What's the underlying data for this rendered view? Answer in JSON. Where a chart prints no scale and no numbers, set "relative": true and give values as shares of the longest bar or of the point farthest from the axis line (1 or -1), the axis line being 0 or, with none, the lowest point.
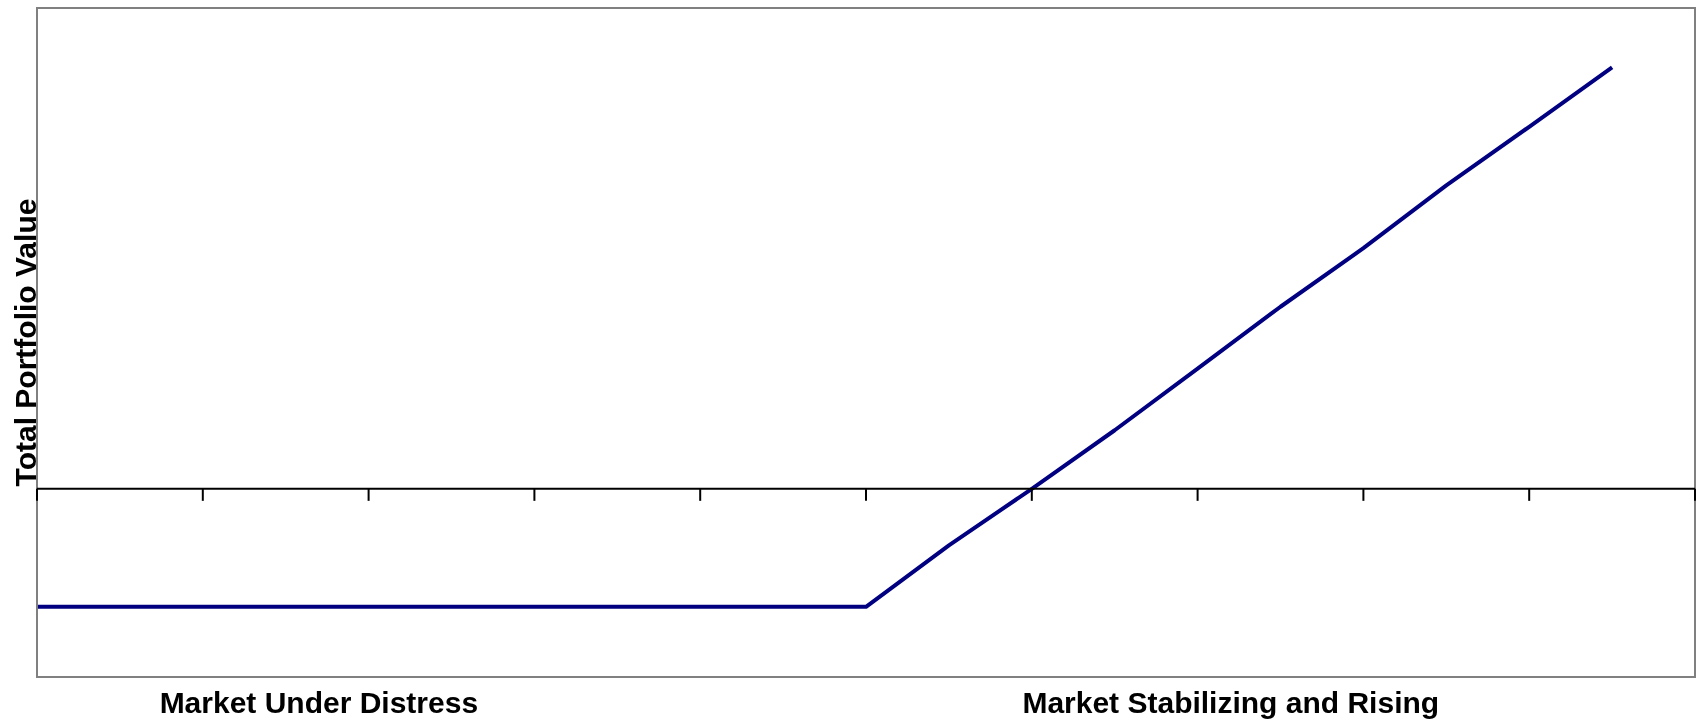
{
  "chart_data": {
    "type": "line",
    "relative": true,
    "ylabel": "Total Portfolio Value",
    "annotations": [
      "Market Under Distress",
      "Market Stabilizing and Rising"
    ],
    "categories": [
      null,
      null,
      null,
      null,
      null,
      null,
      null,
      null,
      null,
      null,
      null,
      null,
      null,
      null,
      null,
      null,
      null,
      null,
      null,
      null,
      null
    ],
    "series": [
      {
        "color": "#000080",
        "values": [
          -0.28,
          -0.28,
          -0.28,
          -0.28,
          -0.28,
          -0.28,
          -0.28,
          -0.28,
          -0.28,
          -0.28,
          -0.28,
          -0.134,
          0,
          0.139,
          0.285,
          0.432,
          0.571,
          0.72,
          0.859,
          1,
          null
        ]
      }
    ],
    "legend": false,
    "marker": "none",
    "line_style": "solid"
  }
}
